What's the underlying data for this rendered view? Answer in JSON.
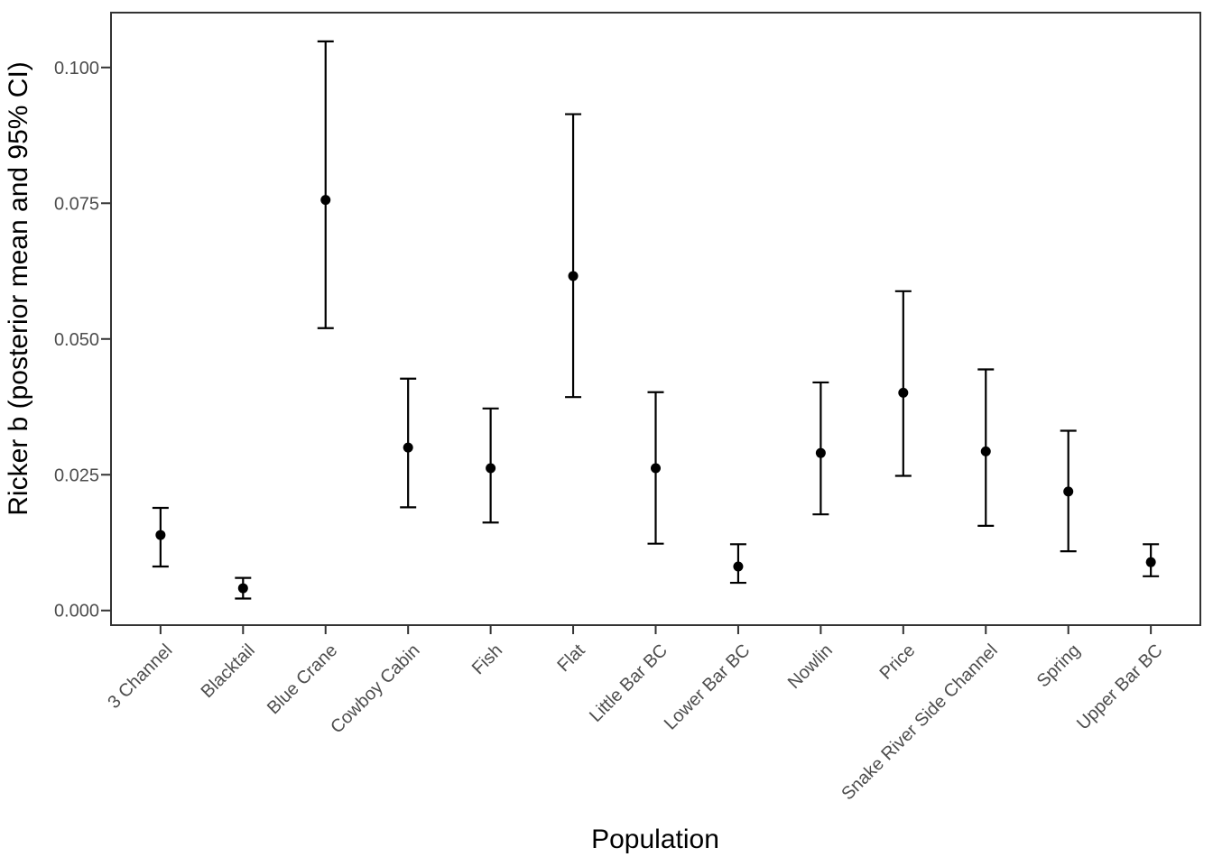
{
  "chart_data": {
    "type": "scatter",
    "subtype": "pointrange-errorbar",
    "title": "",
    "xlabel": "Population",
    "ylabel": "Ricker b (posterior mean and 95% CI)",
    "categories": [
      "3 Channel",
      "Blacktail",
      "Blue Crane",
      "Cowboy Cabin",
      "Fish",
      "Flat",
      "Little Bar BC",
      "Lower Bar BC",
      "Nowlin",
      "Price",
      "Snake River Side Channel",
      "Spring",
      "Upper Bar BC"
    ],
    "series": [
      {
        "name": "posterior mean",
        "values": [
          0.0139,
          0.0041,
          0.0756,
          0.03,
          0.0262,
          0.0616,
          0.0262,
          0.0081,
          0.029,
          0.0401,
          0.0293,
          0.0219,
          0.0089
        ]
      },
      {
        "name": "lower 95% CI",
        "values": [
          0.0081,
          0.0022,
          0.052,
          0.019,
          0.0162,
          0.0393,
          0.0123,
          0.0051,
          0.0177,
          0.0248,
          0.0156,
          0.0109,
          0.0063
        ]
      },
      {
        "name": "upper 95% CI",
        "values": [
          0.0189,
          0.006,
          0.1048,
          0.0427,
          0.0372,
          0.0914,
          0.0402,
          0.0122,
          0.042,
          0.0588,
          0.0444,
          0.0331,
          0.0122
        ]
      }
    ],
    "yticks": {
      "values": [
        0.0,
        0.025,
        0.05,
        0.075,
        0.1
      ],
      "labels": [
        "0.000",
        "0.025",
        "0.050",
        "0.075",
        "0.100"
      ]
    },
    "ylim": [
      -0.0027,
      0.1101
    ],
    "x_label_angle_deg": 45,
    "grid": false,
    "legend": "none",
    "colors": {
      "point": "#000000",
      "error_bar": "#000000",
      "tick_label": "#4d4d4d",
      "axis_title": "#000000",
      "panel_border": "#333333",
      "background": "#ffffff"
    }
  }
}
